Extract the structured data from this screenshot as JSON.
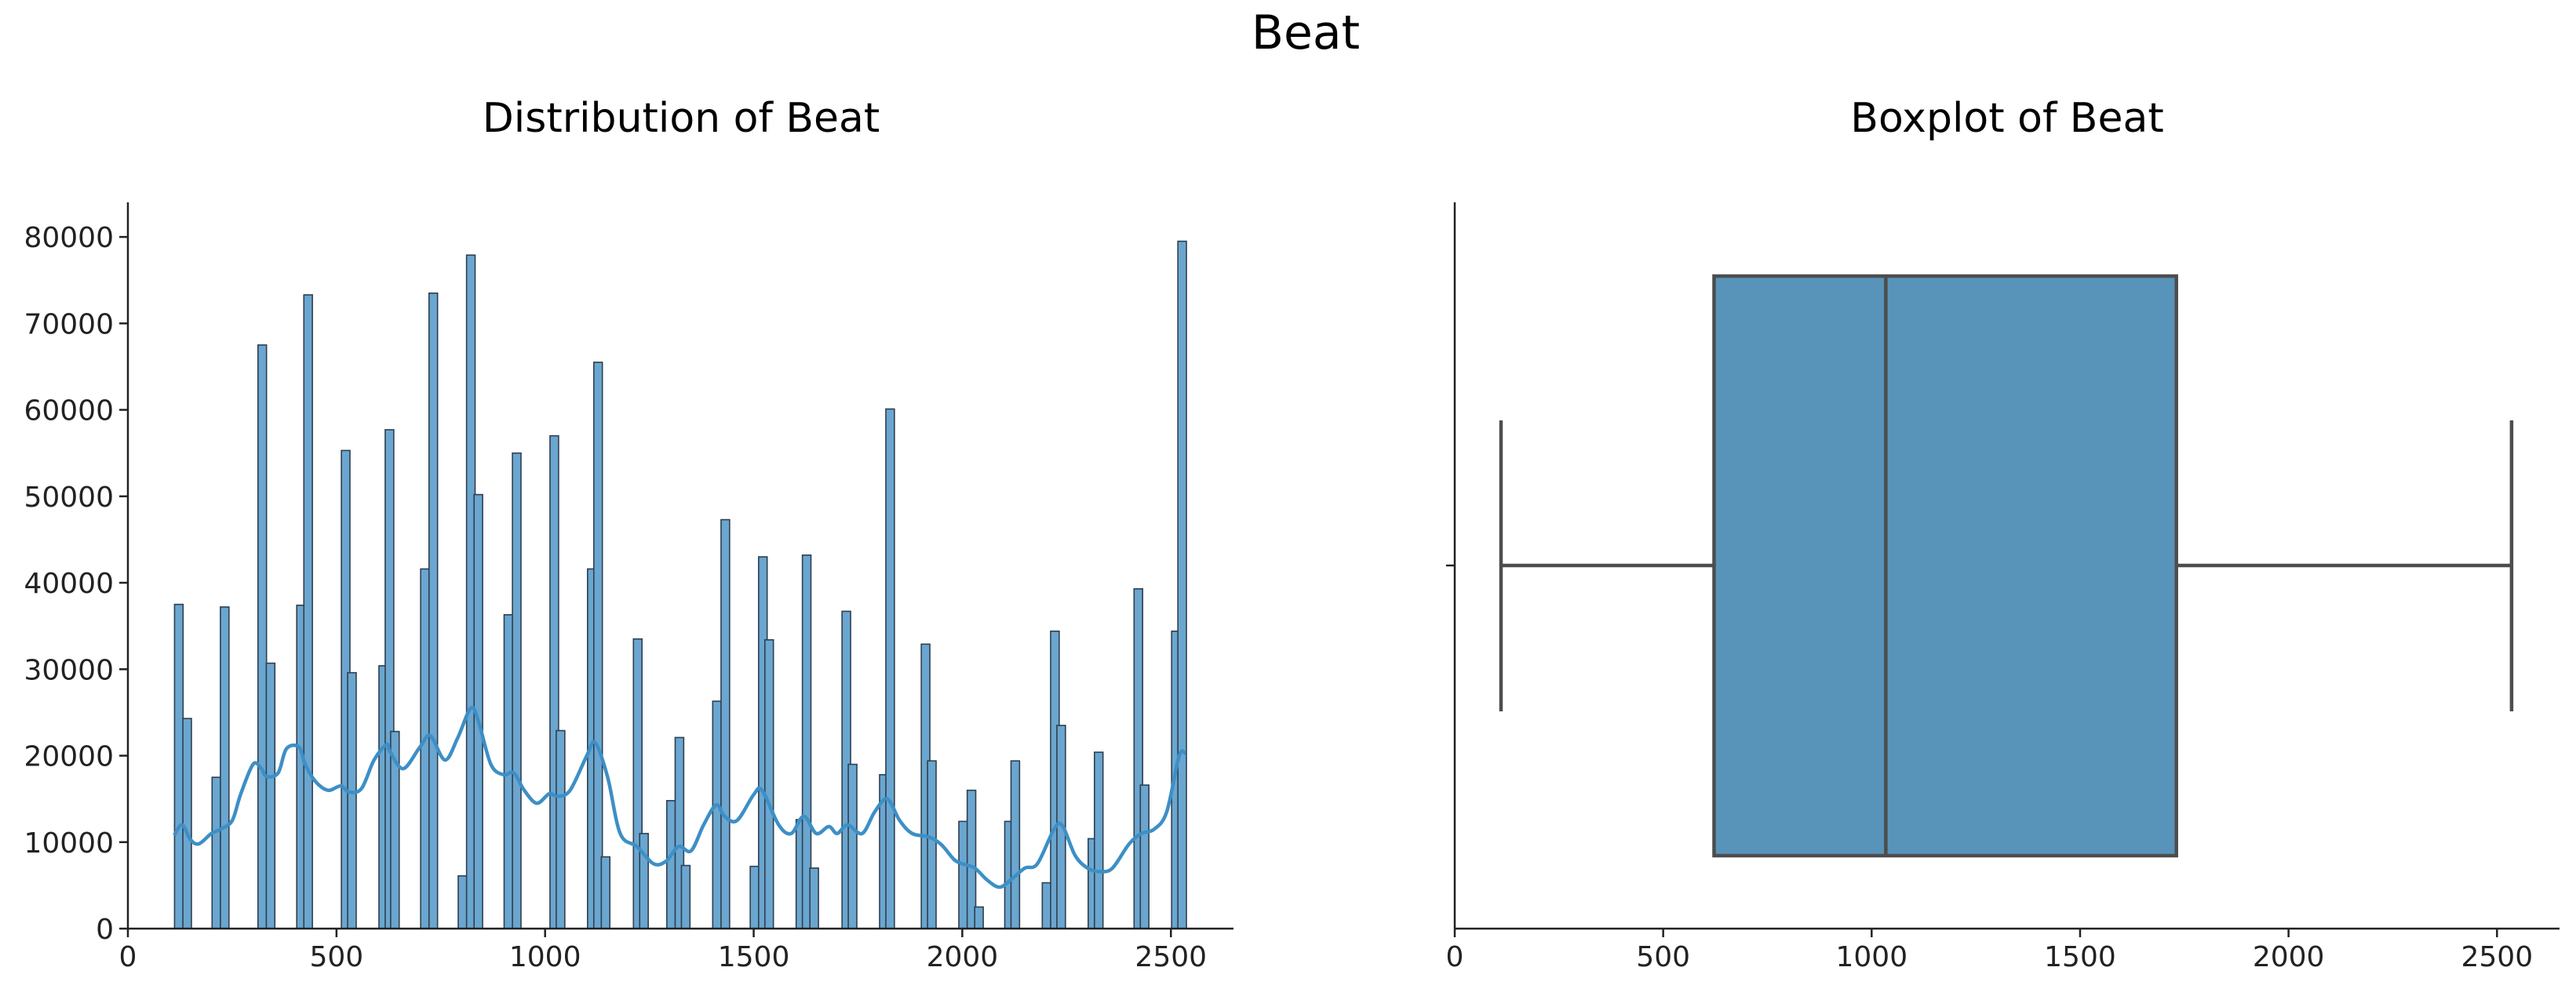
{
  "figure": {
    "title": "Beat"
  },
  "chart_data": [
    {
      "type": "bar",
      "subtype": "histogram-with-kde",
      "title": "Distribution of Beat",
      "xlabel": "",
      "ylabel": "",
      "xlim": [
        0,
        2650
      ],
      "ylim": [
        0,
        84000
      ],
      "x_ticks": [
        0,
        500,
        1000,
        1500,
        2000,
        2500
      ],
      "y_ticks": [
        0,
        10000,
        20000,
        30000,
        40000,
        50000,
        60000,
        70000,
        80000
      ],
      "bin_width": 20.5,
      "bars": [
        {
          "x": 122,
          "value": 37500
        },
        {
          "x": 142,
          "value": 24300
        },
        {
          "x": 212,
          "value": 17500
        },
        {
          "x": 232,
          "value": 37200
        },
        {
          "x": 322,
          "value": 67500
        },
        {
          "x": 342,
          "value": 30700
        },
        {
          "x": 415,
          "value": 37400
        },
        {
          "x": 432,
          "value": 73300
        },
        {
          "x": 522,
          "value": 55300
        },
        {
          "x": 537,
          "value": 29600
        },
        {
          "x": 612,
          "value": 30400
        },
        {
          "x": 627,
          "value": 57700
        },
        {
          "x": 640,
          "value": 22800
        },
        {
          "x": 712,
          "value": 41600
        },
        {
          "x": 732,
          "value": 73500
        },
        {
          "x": 802,
          "value": 6100
        },
        {
          "x": 822,
          "value": 77900
        },
        {
          "x": 840,
          "value": 50200
        },
        {
          "x": 912,
          "value": 36300
        },
        {
          "x": 932,
          "value": 55000
        },
        {
          "x": 1022,
          "value": 57000
        },
        {
          "x": 1037,
          "value": 22900
        },
        {
          "x": 1112,
          "value": 41600
        },
        {
          "x": 1127,
          "value": 65500
        },
        {
          "x": 1145,
          "value": 8300
        },
        {
          "x": 1222,
          "value": 33500
        },
        {
          "x": 1237,
          "value": 11000
        },
        {
          "x": 1302,
          "value": 14800
        },
        {
          "x": 1322,
          "value": 22100
        },
        {
          "x": 1337,
          "value": 7300
        },
        {
          "x": 1412,
          "value": 26300
        },
        {
          "x": 1432,
          "value": 47300
        },
        {
          "x": 1502,
          "value": 7200
        },
        {
          "x": 1522,
          "value": 43000
        },
        {
          "x": 1537,
          "value": 33400
        },
        {
          "x": 1612,
          "value": 12600
        },
        {
          "x": 1627,
          "value": 43200
        },
        {
          "x": 1645,
          "value": 7000
        },
        {
          "x": 1722,
          "value": 36700
        },
        {
          "x": 1737,
          "value": 19000
        },
        {
          "x": 1812,
          "value": 17800
        },
        {
          "x": 1827,
          "value": 60100
        },
        {
          "x": 1912,
          "value": 32900
        },
        {
          "x": 1927,
          "value": 19400
        },
        {
          "x": 2002,
          "value": 12400
        },
        {
          "x": 2022,
          "value": 16000
        },
        {
          "x": 2040,
          "value": 2500
        },
        {
          "x": 2112,
          "value": 12400
        },
        {
          "x": 2127,
          "value": 19400
        },
        {
          "x": 2202,
          "value": 5300
        },
        {
          "x": 2222,
          "value": 34400
        },
        {
          "x": 2237,
          "value": 23500
        },
        {
          "x": 2312,
          "value": 10400
        },
        {
          "x": 2327,
          "value": 20400
        },
        {
          "x": 2422,
          "value": 39300
        },
        {
          "x": 2437,
          "value": 16600
        },
        {
          "x": 2512,
          "value": 34400
        },
        {
          "x": 2527,
          "value": 79500
        }
      ],
      "kde": {
        "x": [
          111,
          130,
          150,
          170,
          200,
          222,
          250,
          270,
          300,
          320,
          332,
          360,
          380,
          410,
          425,
          450,
          480,
          510,
          530,
          560,
          590,
          620,
          628,
          660,
          700,
          725,
          760,
          790,
          822,
          840,
          870,
          900,
          925,
          950,
          980,
          1010,
          1030,
          1060,
          1100,
          1120,
          1150,
          1180,
          1220,
          1260,
          1290,
          1320,
          1350,
          1380,
          1410,
          1430,
          1460,
          1500,
          1520,
          1560,
          1590,
          1620,
          1650,
          1680,
          1700,
          1725,
          1760,
          1790,
          1820,
          1850,
          1880,
          1920,
          1950,
          1980,
          2000,
          2030,
          2060,
          2090,
          2120,
          2150,
          2180,
          2220,
          2240,
          2270,
          2300,
          2330,
          2360,
          2400,
          2430,
          2460,
          2490,
          2520,
          2536
        ],
        "y": [
          10800,
          12000,
          10300,
          9800,
          11000,
          11500,
          12500,
          15500,
          19000,
          18500,
          17600,
          18000,
          20800,
          21000,
          19000,
          17000,
          16000,
          16500,
          15800,
          16200,
          19500,
          21300,
          20500,
          18500,
          21000,
          22300,
          19500,
          22000,
          25500,
          24000,
          19000,
          17800,
          18000,
          16000,
          14500,
          15600,
          15300,
          16000,
          20000,
          21500,
          17500,
          11000,
          9500,
          7500,
          7800,
          9500,
          9000,
          12000,
          14300,
          13000,
          12500,
          15500,
          16000,
          12000,
          11000,
          13000,
          11000,
          11800,
          11000,
          12000,
          11000,
          13500,
          15000,
          12500,
          11000,
          10600,
          9700,
          8000,
          7500,
          7000,
          5600,
          4800,
          5800,
          7000,
          7500,
          11500,
          11900,
          8500,
          7000,
          6600,
          7000,
          9800,
          11000,
          11500,
          13500,
          20000,
          20200
        ]
      }
    },
    {
      "type": "boxplot",
      "title": "Boxplot of Beat",
      "xlabel": "",
      "ylabel": "",
      "xlim": [
        0,
        2650
      ],
      "x_ticks": [
        0,
        500,
        1000,
        1500,
        2000,
        2500
      ],
      "min": 111,
      "q1": 622,
      "median": 1034,
      "q3": 1731,
      "max": 2535
    }
  ]
}
